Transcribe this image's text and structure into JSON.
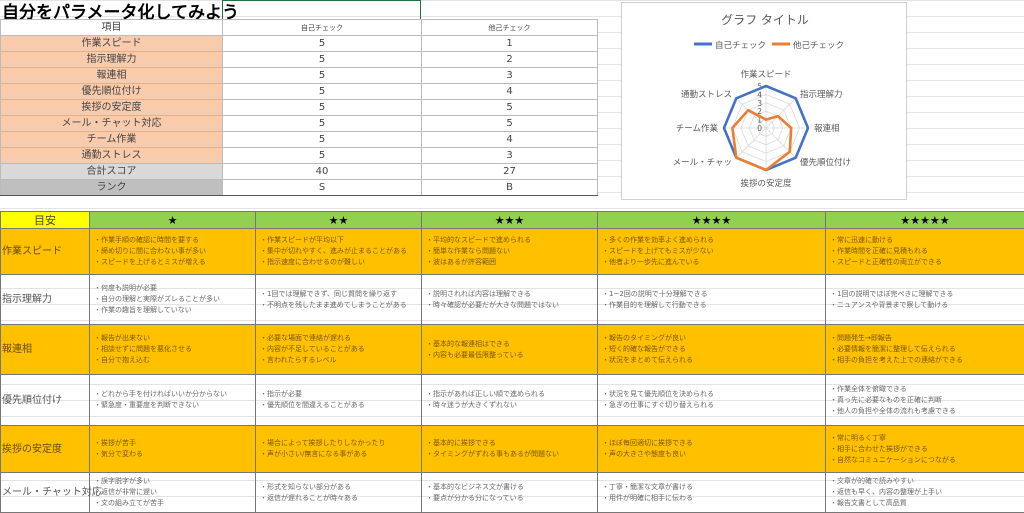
{
  "title": "自分をパラメータ化してみよう",
  "score_table": {
    "headers": [
      "項目",
      "自己チェック",
      "他己チェック"
    ],
    "rows": [
      {
        "item": "作業スピード",
        "self": "5",
        "other": "1"
      },
      {
        "item": "指示理解力",
        "self": "5",
        "other": "2"
      },
      {
        "item": "報連相",
        "self": "5",
        "other": "3"
      },
      {
        "item": "優先順位付け",
        "self": "5",
        "other": "4"
      },
      {
        "item": "挨拶の安定度",
        "self": "5",
        "other": "5"
      },
      {
        "item": "メール・チャット対応",
        "self": "5",
        "other": "5"
      },
      {
        "item": "チーム作業",
        "self": "5",
        "other": "4"
      },
      {
        "item": "通勤ストレス",
        "self": "5",
        "other": "3"
      }
    ],
    "total": {
      "item": "合計スコア",
      "self": "40",
      "other": "27"
    },
    "rank": {
      "item": "ランク",
      "self": "S",
      "other": "B"
    }
  },
  "chart_data": {
    "type": "radar",
    "title": "グラフ タイトル",
    "categories": [
      "作業スピード",
      "指示理解力",
      "報連相",
      "優先順位付け",
      "挨拶の安定度",
      "メール・チャッ",
      "チーム作業",
      "通勤ストレス"
    ],
    "axis_ticks": [
      "0",
      "1",
      "2",
      "3",
      "4",
      "5"
    ],
    "rlim": [
      0,
      5
    ],
    "legend": "top",
    "series": [
      {
        "name": "自己チェック",
        "color": "#4472c4",
        "values": [
          5,
          5,
          5,
          5,
          5,
          5,
          5,
          5
        ]
      },
      {
        "name": "他己チェック",
        "color": "#ed7d31",
        "values": [
          1,
          2,
          3,
          4,
          5,
          5,
          4,
          3
        ]
      }
    ]
  },
  "guide": {
    "header": [
      "目安",
      "★",
      "★★",
      "★★★",
      "★★★★",
      "★★★★★"
    ],
    "rows": [
      {
        "label": "作業スピード",
        "cells": [
          [
            "・作業手順の確認に時間を要する",
            "・締め切りに間に合わない事が多い",
            "・スピードを上げるとミスが増える"
          ],
          [
            "・作業スピードが平均以下",
            "・集中が切れやすく、進みが止まることがある",
            "・指示速度に合わせるのが難しい"
          ],
          [
            "・平均的なスピードで進められる",
            "・簡単な作業なら問題ない",
            "・波はあるが許容範囲"
          ],
          [
            "・多くの作業を効率よく進められる",
            "・スピードを上げてもミスが少ない",
            "・他者より一歩先に進んでいる"
          ],
          [
            "・常に迅速に動ける",
            "・作業時間を正確に見積もれる",
            "・スピードと正確性の両立ができる"
          ]
        ]
      },
      {
        "label": "指示理解力",
        "cells": [
          [
            "・何度も説明が必要",
            "・自分の理解と実際がズレることが多い",
            "・作業の趣旨を理解していない"
          ],
          [
            "・1回では理解できず、同じ質問を繰り返す",
            "・不明点を残したまま進めてしまうことがある"
          ],
          [
            "・説明されれば内容は理解できる",
            "・時々確認が必要だが大きな問題ではない"
          ],
          [
            "・1~2回の説明で十分理解できる",
            "・作業目的を理解して行動できる"
          ],
          [
            "・1回の説明でほぼ完ぺきに理解できる",
            "・ニュアンスや背景まで察して動ける"
          ]
        ]
      },
      {
        "label": "報連相",
        "cells": [
          [
            "・報告が出来ない",
            "・相談せずに問題を悪化させる",
            "・自分で抱え込む"
          ],
          [
            "・必要な場面で連絡が遅れる",
            "・内容が不足していることがある",
            "・言われたらするレベル"
          ],
          [
            "・基本的な報連相はできる",
            "・内容も必要最低限整っている"
          ],
          [
            "・報告のタイミングが良い",
            "・短く的確な報告ができる",
            "・状況をまとめて伝えられる"
          ],
          [
            "・問題発生→即報告",
            "・必要情報を簡潔に整理して伝えられる",
            "・相手の負担を考えた上での連絡ができる"
          ]
        ]
      },
      {
        "label": "優先順位付け",
        "cells": [
          [
            "・どれから手を付ければいいか分からない",
            "・緊急度・重要度を判断できない"
          ],
          [
            "・指示が必要",
            "・優先順位を間違えることがある"
          ],
          [
            "・指示があれば正しい順で進められる",
            "・時々迷うが大きくずれない"
          ],
          [
            "・状況を見て優先順位を決められる",
            "・急ぎの仕事にすぐ切り替えられる"
          ],
          [
            "・作業全体を俯瞰できる",
            "・真っ先に必要なものを正確に判断",
            "・他人の負担や全体の流れも考慮できる"
          ]
        ]
      },
      {
        "label": "挨拶の安定度",
        "cells": [
          [
            "・挨拶が苦手",
            "・気分で変わる"
          ],
          [
            "・場合によって挨拶したりしなかったり",
            "・声が小さい/無言になる事がある"
          ],
          [
            "・基本的に挨拶できる",
            "・タイミングがずれる事もあるが問題ない"
          ],
          [
            "・ほぼ毎回適切に挨拶できる",
            "・声の大きさや態度も良い"
          ],
          [
            "・常に明るく丁寧",
            "・相手に合わせた挨拶ができる",
            "・自然なコミュニケーションにつながる"
          ]
        ]
      },
      {
        "label": "メール・チャット対応",
        "cells": [
          [
            "・誤字脱字が多い",
            "・返信が非常に遅い",
            "・文の組み立てが苦手"
          ],
          [
            "・形式を知らない部分がある",
            "・返信が遅れることが時々ある"
          ],
          [
            "・基本的なビジネス文が書ける",
            "・要点が分かる分になっている"
          ],
          [
            "・丁寧・簡潔な文章が書ける",
            "・用件が明確に相手に伝わる"
          ],
          [
            "・文章が的確で読みやすい",
            "・返信も早く、内容の整理が上手い",
            "・報告文書として高品質"
          ]
        ]
      }
    ]
  }
}
